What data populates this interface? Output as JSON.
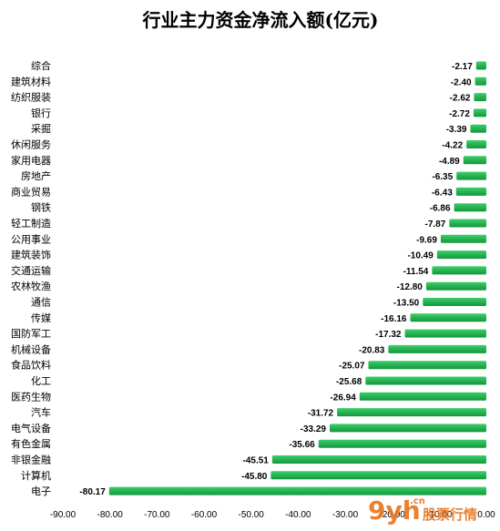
{
  "chart_data": {
    "type": "bar",
    "orientation": "horizontal",
    "title": "行业主力资金净流入额(亿元)",
    "xlabel": "",
    "ylabel": "",
    "xlim": [
      -90,
      0
    ],
    "grid": false,
    "categories": [
      "综合",
      "建筑材料",
      "纺织服装",
      "银行",
      "采掘",
      "休闲服务",
      "家用电器",
      "房地产",
      "商业贸易",
      "钢铁",
      "轻工制造",
      "公用事业",
      "建筑装饰",
      "交通运输",
      "农林牧渔",
      "通信",
      "传媒",
      "国防军工",
      "机械设备",
      "食品饮料",
      "化工",
      "医药生物",
      "汽车",
      "电气设备",
      "有色金属",
      "非银金融",
      "计算机",
      "电子"
    ],
    "values": [
      -2.17,
      -2.4,
      -2.62,
      -2.72,
      -3.39,
      -4.22,
      -4.89,
      -6.35,
      -6.43,
      -6.86,
      -7.87,
      -9.69,
      -10.49,
      -11.54,
      -12.8,
      -13.5,
      -16.16,
      -17.32,
      -20.83,
      -25.07,
      -25.68,
      -26.94,
      -31.72,
      -33.29,
      -35.66,
      -45.51,
      -45.8,
      -80.17
    ],
    "value_labels": [
      "-2.17",
      "-2.40",
      "-2.62",
      "-2.72",
      "-3.39",
      "-4.22",
      "-4.89",
      "-6.35",
      "-6.43",
      "-6.86",
      "-7.87",
      "-9.69",
      "-10.49",
      "-11.54",
      "-12.80",
      "-13.50",
      "-16.16",
      "-17.32",
      "-20.83",
      "-25.07",
      "-25.68",
      "-26.94",
      "-31.72",
      "-33.29",
      "-35.66",
      "-45.51",
      "-45.80",
      "-80.17"
    ],
    "x_ticks": [
      -90,
      -80,
      -70,
      -60,
      -50,
      -40,
      -30,
      -20,
      -10,
      0
    ],
    "x_tick_labels": [
      "-90.00",
      "-80.00",
      "-70.00",
      "-60.00",
      "-50.00",
      "-40.00",
      "-30.00",
      "-20.00",
      "-10.00",
      "0.00"
    ],
    "bar_color": "#1aab4b",
    "bar_color_light": "#3ccf6a"
  },
  "watermark": {
    "logo_text": "9yh",
    "domain_text": ".cn",
    "brand_text": "股票行情",
    "color": "#e8731a"
  }
}
